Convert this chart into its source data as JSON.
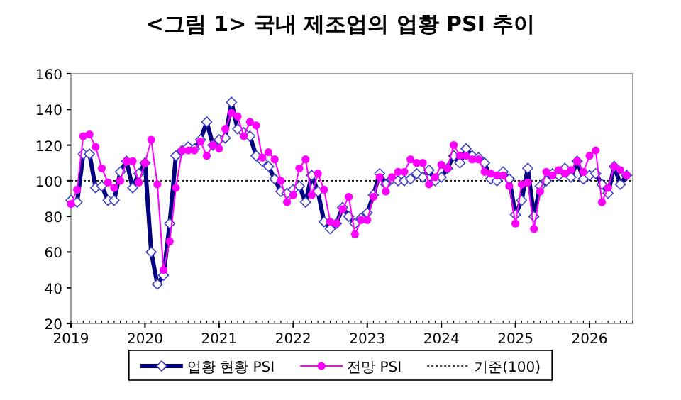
{
  "chart_data": {
    "type": "line",
    "title": "<그림 1> 국내 제조업의 업황 PSI 추이",
    "xlim": [
      "2019-01",
      "2026-08"
    ],
    "xticks": [
      {
        "value": "2019-01",
        "label": "2019"
      },
      {
        "value": "2020-01",
        "label": "2020"
      },
      {
        "value": "2021-01",
        "label": "2021"
      },
      {
        "value": "2022-01",
        "label": "2022"
      },
      {
        "value": "2023-01",
        "label": "2023"
      },
      {
        "value": "2024-01",
        "label": "2024"
      },
      {
        "value": "2025-01",
        "label": "2025"
      },
      {
        "value": "2026-01",
        "label": "2026"
      }
    ],
    "x": [
      "2019-01",
      "2019-02",
      "2019-03",
      "2019-04",
      "2019-05",
      "2019-06",
      "2019-07",
      "2019-08",
      "2019-09",
      "2019-10",
      "2019-11",
      "2019-12",
      "2020-01",
      "2020-02",
      "2020-03",
      "2020-04",
      "2020-05",
      "2020-06",
      "2020-07",
      "2020-08",
      "2020-09",
      "2020-10",
      "2020-11",
      "2020-12",
      "2021-01",
      "2021-02",
      "2021-03",
      "2021-04",
      "2021-05",
      "2021-06",
      "2021-07",
      "2021-08",
      "2021-09",
      "2021-10",
      "2021-11",
      "2021-12",
      "2022-01",
      "2022-02",
      "2022-03",
      "2022-04",
      "2022-05",
      "2022-06",
      "2022-07",
      "2022-08",
      "2022-09",
      "2022-10",
      "2022-11",
      "2022-12",
      "2023-01",
      "2023-02",
      "2023-03",
      "2023-04",
      "2023-05",
      "2023-06",
      "2023-07",
      "2023-08",
      "2023-09",
      "2023-10",
      "2023-11",
      "2023-12",
      "2024-01",
      "2024-02",
      "2024-03",
      "2024-04",
      "2024-05",
      "2024-06",
      "2024-07",
      "2024-08",
      "2024-09",
      "2024-10",
      "2024-11",
      "2024-12",
      "2025-01",
      "2025-02",
      "2025-03",
      "2025-04",
      "2025-05",
      "2025-06",
      "2025-07",
      "2025-08",
      "2025-09",
      "2025-10",
      "2025-11",
      "2025-12",
      "2026-01",
      "2026-02",
      "2026-03",
      "2026-04",
      "2026-05",
      "2026-06",
      "2026-07"
    ],
    "ylim": [
      20,
      160
    ],
    "yticks": [
      20,
      40,
      60,
      80,
      100,
      120,
      140,
      160
    ],
    "grid": false,
    "legend": "bottom",
    "series": [
      {
        "name": "업황 현황 PSI",
        "color": "#000080",
        "marker": "diamond",
        "values": [
          89,
          88,
          115,
          115,
          96,
          97,
          89,
          89,
          105,
          111,
          96,
          104,
          110,
          60,
          42,
          47,
          76,
          114,
          117,
          119,
          118,
          123,
          133,
          120,
          123,
          124,
          144,
          129,
          127,
          125,
          114,
          111,
          108,
          101,
          94,
          93,
          95,
          97,
          88,
          103,
          94,
          77,
          73,
          76,
          85,
          80,
          76,
          79,
          82,
          92,
          104,
          98,
          101,
          100,
          100,
          101,
          104,
          102,
          106,
          100,
          102,
          107,
          114,
          110,
          118,
          114,
          113,
          110,
          101,
          100,
          105,
          101,
          81,
          89,
          107,
          80,
          97,
          100,
          104,
          103,
          107,
          102,
          111,
          101,
          103,
          104,
          98,
          93,
          108,
          98,
          103
        ]
      },
      {
        "name": "전망 PSI",
        "color": "#ff00ff",
        "marker": "circle",
        "values": [
          87,
          95,
          125,
          126,
          119,
          107,
          99,
          96,
          100,
          111,
          111,
          99,
          110,
          123,
          98,
          50,
          66,
          96,
          117,
          117,
          117,
          122,
          114,
          120,
          118,
          129,
          138,
          136,
          125,
          133,
          131,
          113,
          116,
          112,
          100,
          88,
          92,
          107,
          112,
          92,
          104,
          95,
          77,
          76,
          84,
          91,
          70,
          78,
          78,
          91,
          102,
          94,
          102,
          105,
          105,
          112,
          110,
          110,
          98,
          102,
          109,
          107,
          120,
          114,
          114,
          112,
          112,
          105,
          104,
          103,
          103,
          97,
          76,
          98,
          99,
          73,
          94,
          105,
          103,
          106,
          104,
          106,
          111,
          105,
          114,
          117,
          88,
          96,
          108,
          106,
          103
        ]
      }
    ],
    "ref_lines": [
      {
        "axis": "y",
        "value": 100,
        "label": "기준(100)",
        "color": "#000000",
        "line_style": "dotted"
      }
    ]
  }
}
